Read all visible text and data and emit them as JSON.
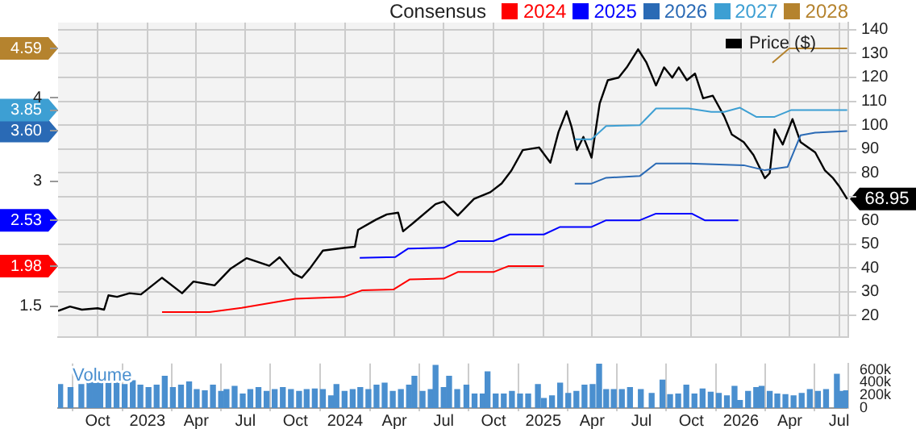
{
  "chart_data": [
    {
      "type": "line",
      "legend_title": "Consensus",
      "legend": "top",
      "grid": true,
      "tick_labels": "y",
      "xlim": [
        "2022-07-20",
        "2026-07-18"
      ],
      "xticks": [
        {
          "value": "2022-10-01",
          "label": null
        },
        {
          "value": "2023-01-01",
          "label": null
        },
        {
          "value": "2023-04-01",
          "label": null
        },
        {
          "value": "2023-07-01",
          "label": null
        },
        {
          "value": "2023-10-01",
          "label": null
        },
        {
          "value": "2024-01-01",
          "label": null
        },
        {
          "value": "2024-04-01",
          "label": null
        },
        {
          "value": "2024-07-01",
          "label": null
        },
        {
          "value": "2024-10-01",
          "label": null
        },
        {
          "value": "2025-01-01",
          "label": null
        },
        {
          "value": "2025-04-01",
          "label": null
        },
        {
          "value": "2025-07-01",
          "label": null
        },
        {
          "value": "2025-10-01",
          "label": null
        },
        {
          "value": "2026-01-01",
          "label": null
        },
        {
          "value": "2026-04-01",
          "label": null
        },
        {
          "value": "2026-07-01",
          "label": null
        }
      ],
      "ylim": [
        1.13,
        4.9
      ],
      "yticks": [
        1.5,
        {
          "value": 1.98,
          "label": "1.98"
        },
        {
          "value": 2.53,
          "label": "2.53"
        },
        3,
        {
          "value": 3.6,
          "label": "3.60"
        },
        {
          "value": 3.85,
          "label": "3.85"
        },
        4,
        {
          "value": 4.59,
          "label": "4.59"
        }
      ],
      "y2lim": [
        11,
        143
      ],
      "y2ticks": [
        20,
        30,
        40,
        50,
        60,
        {
          "value": 70,
          "label": null
        },
        80,
        90,
        100,
        110,
        120,
        130,
        140
      ],
      "series": [
        {
          "name": "2024",
          "color": "#ff0000",
          "axis": "y",
          "x": [
            "2023-01-28",
            "2023-04-26",
            "2023-06-24",
            "2023-10-01",
            "2023-12-29",
            "2024-02-01",
            "2024-03-30",
            "2024-04-29",
            "2024-07-01",
            "2024-07-27",
            "2024-10-01",
            "2024-10-28",
            "2025-01-02"
          ],
          "values": [
            1.43,
            1.43,
            1.48,
            1.59,
            1.61,
            1.69,
            1.7,
            1.82,
            1.83,
            1.91,
            1.91,
            1.98,
            1.98
          ]
        },
        {
          "name": "2025",
          "color": "#0000ff",
          "axis": "y",
          "x": [
            "2024-01-28",
            "2024-04-03",
            "2024-04-26",
            "2024-07-01",
            "2024-07-27",
            "2024-10-01",
            "2024-10-31",
            "2025-01-02",
            "2025-02-01",
            "2025-03-31",
            "2025-04-27",
            "2025-06-28",
            "2025-07-28",
            "2025-10-02",
            "2025-10-26",
            "2025-12-27"
          ],
          "values": [
            2.08,
            2.09,
            2.19,
            2.2,
            2.28,
            2.28,
            2.36,
            2.36,
            2.45,
            2.45,
            2.53,
            2.53,
            2.61,
            2.61,
            2.53,
            2.53
          ]
        },
        {
          "name": "2026",
          "color": "#2a6ab5",
          "axis": "y",
          "x": [
            "2025-02-28",
            "2025-03-31",
            "2025-04-27",
            "2025-06-28",
            "2025-07-28",
            "2025-09-26",
            "2026-01-06",
            "2026-02-14",
            "2026-03-28",
            "2026-04-21",
            "2026-05-18",
            "2026-07-16"
          ],
          "values": [
            2.97,
            2.97,
            3.04,
            3.06,
            3.21,
            3.21,
            3.19,
            3.13,
            3.17,
            3.55,
            3.58,
            3.6
          ]
        },
        {
          "name": "2027",
          "color": "#3d9fd3",
          "axis": "y",
          "x": [
            "2025-02-28",
            "2025-03-31",
            "2025-04-27",
            "2025-06-28",
            "2025-07-28",
            "2025-09-26",
            "2025-11-07",
            "2025-12-01",
            "2025-12-30",
            "2026-01-29",
            "2026-03-04",
            "2026-04-03",
            "2026-07-16"
          ],
          "values": [
            3.5,
            3.5,
            3.66,
            3.67,
            3.87,
            3.87,
            3.83,
            3.83,
            3.88,
            3.77,
            3.77,
            3.85,
            3.85
          ]
        },
        {
          "name": "2028",
          "color": "#b5832e",
          "axis": "y",
          "x": [
            "2026-02-28",
            "2026-03-31",
            "2026-07-16"
          ],
          "values": [
            4.42,
            4.59,
            4.59
          ]
        },
        {
          "name": "Price ($)",
          "color": "#000000",
          "axis": "y2",
          "x": [
            "2022-07-20",
            "2022-08-11",
            "2022-09-02",
            "2022-10-01",
            "2022-10-13",
            "2022-10-21",
            "2022-11-06",
            "2022-11-29",
            "2022-12-20",
            "2023-01-28",
            "2023-03-06",
            "2023-03-27",
            "2023-05-05",
            "2023-06-04",
            "2023-07-03",
            "2023-08-14",
            "2023-09-02",
            "2023-09-28",
            "2023-10-13",
            "2023-10-28",
            "2023-11-21",
            "2023-12-29",
            "2024-01-19",
            "2024-01-25",
            "2024-02-27",
            "2024-03-18",
            "2024-04-08",
            "2024-04-17",
            "2024-05-08",
            "2024-06-16",
            "2024-07-01",
            "2024-07-27",
            "2024-08-26",
            "2024-09-25",
            "2024-10-16",
            "2024-11-03",
            "2024-11-24",
            "2024-12-24",
            "2025-01-14",
            "2025-01-29",
            "2025-02-13",
            "2025-02-22",
            "2025-03-04",
            "2025-03-16",
            "2025-03-31",
            "2025-04-15",
            "2025-04-30",
            "2025-05-20",
            "2025-06-04",
            "2025-06-25",
            "2025-07-10",
            "2025-07-28",
            "2025-08-12",
            "2025-08-27",
            "2025-09-08",
            "2025-09-23",
            "2025-10-08",
            "2025-10-23",
            "2025-11-10",
            "2025-12-01",
            "2025-12-15",
            "2026-01-06",
            "2026-01-24",
            "2026-02-14",
            "2026-02-23",
            "2026-03-04",
            "2026-03-19",
            "2026-04-06",
            "2026-04-21",
            "2026-05-18",
            "2026-06-05",
            "2026-06-20",
            "2026-07-01",
            "2026-07-16"
          ],
          "values": [
            22.0,
            23.8,
            22.5,
            23.1,
            22.5,
            28.5,
            27.9,
            29.4,
            28.9,
            35.9,
            29.4,
            34.3,
            32.7,
            39.8,
            44.1,
            40.9,
            44.5,
            37.6,
            35.9,
            39.8,
            47.3,
            48.4,
            48.9,
            56.0,
            60.3,
            62.5,
            63.2,
            55.4,
            59.3,
            66.8,
            67.9,
            62.0,
            69.0,
            71.8,
            75.5,
            80.9,
            89.5,
            90.6,
            84.2,
            97.1,
            105.8,
            99.3,
            89.5,
            95.0,
            86.3,
            109.0,
            118.8,
            119.9,
            124.2,
            131.8,
            126.4,
            116.6,
            124.2,
            119.9,
            124.2,
            118.8,
            121.6,
            111.2,
            112.3,
            103.6,
            96.0,
            92.8,
            87.4,
            77.7,
            79.8,
            98.2,
            91.8,
            102.5,
            92.8,
            88.5,
            80.9,
            77.7,
            74.4,
            68.95
          ],
          "value_labels": [
            null,
            null,
            null,
            null,
            null,
            null,
            null,
            null,
            null,
            null,
            null,
            null,
            null,
            null,
            null,
            null,
            null,
            null,
            null,
            null,
            null,
            null,
            null,
            null,
            null,
            null,
            null,
            null,
            null,
            null,
            null,
            null,
            null,
            null,
            null,
            null,
            null,
            null,
            null,
            null,
            null,
            null,
            null,
            null,
            null,
            null,
            null,
            null,
            null,
            null,
            null,
            null,
            null,
            null,
            null,
            null,
            null,
            null,
            null,
            null,
            null,
            null,
            null,
            null,
            null,
            null,
            null,
            null,
            null,
            null,
            null,
            null,
            null,
            "68.95"
          ]
        }
      ]
    },
    {
      "type": "bar",
      "annotations": [
        "Volume"
      ],
      "grid": "x",
      "color": "#4a8fcf",
      "xlim": [
        "2022-07-20",
        "2026-07-18"
      ],
      "xticks": [
        {
          "value": "2022-10-01",
          "label": "Oct"
        },
        {
          "value": "2023-01-01",
          "label": "2023"
        },
        {
          "value": "2023-04-01",
          "label": "Apr"
        },
        {
          "value": "2023-07-01",
          "label": "Jul"
        },
        {
          "value": "2023-10-01",
          "label": "Oct"
        },
        {
          "value": "2024-01-01",
          "label": "2024"
        },
        {
          "value": "2024-04-01",
          "label": "Apr"
        },
        {
          "value": "2024-07-01",
          "label": "Jul"
        },
        {
          "value": "2024-10-01",
          "label": "Oct"
        },
        {
          "value": "2025-01-01",
          "label": "2025"
        },
        {
          "value": "2025-04-01",
          "label": "Apr"
        },
        {
          "value": "2025-07-01",
          "label": "Jul"
        },
        {
          "value": "2025-10-01",
          "label": "Oct"
        },
        {
          "value": "2026-01-01",
          "label": "2026"
        },
        {
          "value": "2026-04-01",
          "label": "Apr"
        },
        {
          "value": "2026-07-01",
          "label": "Jul"
        }
      ],
      "ylim": [
        0,
        700000
      ],
      "yticks": [
        0,
        {
          "value": 200000,
          "label": "200k"
        },
        {
          "value": 400000,
          "label": "400k"
        },
        {
          "value": 600000,
          "label": "600k"
        }
      ],
      "x": [
        "2022-07-24",
        "2022-08-12",
        "2022-09-01",
        "2022-09-16",
        "2022-09-26",
        "2022-10-06",
        "2022-10-21",
        "2022-11-05",
        "2022-11-20",
        "2022-12-05",
        "2022-12-19",
        "2023-01-03",
        "2023-01-18",
        "2023-02-02",
        "2023-02-17",
        "2023-03-04",
        "2023-03-19",
        "2023-04-02",
        "2023-04-17",
        "2023-05-02",
        "2023-05-17",
        "2023-05-27",
        "2023-06-11",
        "2023-06-26",
        "2023-07-10",
        "2023-07-25",
        "2023-08-09",
        "2023-08-24",
        "2023-09-08",
        "2023-09-23",
        "2023-10-08",
        "2023-10-22",
        "2023-11-06",
        "2023-11-21",
        "2023-12-06",
        "2023-12-16",
        "2023-12-31",
        "2024-01-15",
        "2024-01-29",
        "2024-02-13",
        "2024-02-28",
        "2024-03-14",
        "2024-03-29",
        "2024-04-13",
        "2024-04-28",
        "2024-05-08",
        "2024-05-23",
        "2024-06-07",
        "2024-06-16",
        "2024-07-01",
        "2024-07-11",
        "2024-07-26",
        "2024-08-12",
        "2024-08-27",
        "2024-09-11",
        "2024-09-20",
        "2024-10-05",
        "2024-10-20",
        "2024-11-04",
        "2024-11-19",
        "2024-12-04",
        "2024-12-22",
        "2025-01-02",
        "2025-01-17",
        "2025-02-01",
        "2025-02-16",
        "2025-03-03",
        "2025-03-18",
        "2025-04-02",
        "2025-04-14",
        "2025-04-27",
        "2025-05-11",
        "2025-05-26",
        "2025-06-10",
        "2025-06-30",
        "2025-07-20",
        "2025-08-09",
        "2025-08-23",
        "2025-09-07",
        "2025-09-22",
        "2025-10-07",
        "2025-10-22",
        "2025-11-06",
        "2025-11-21",
        "2025-12-06",
        "2025-12-20",
        "2025-12-30",
        "2026-01-14",
        "2026-01-29",
        "2026-02-08",
        "2026-02-23",
        "2026-03-09",
        "2026-03-24",
        "2026-04-08",
        "2026-04-23",
        "2026-05-08",
        "2026-05-23",
        "2026-06-07",
        "2026-06-27",
        "2026-07-06",
        "2026-07-14"
      ],
      "values": [
        370000,
        320000,
        370000,
        500000,
        500000,
        460000,
        430000,
        460000,
        370000,
        430000,
        360000,
        320000,
        360000,
        500000,
        320000,
        360000,
        410000,
        290000,
        270000,
        360000,
        260000,
        290000,
        340000,
        220000,
        290000,
        320000,
        260000,
        290000,
        320000,
        290000,
        260000,
        290000,
        300000,
        290000,
        190000,
        370000,
        260000,
        290000,
        320000,
        290000,
        360000,
        390000,
        260000,
        290000,
        360000,
        500000,
        260000,
        290000,
        670000,
        320000,
        500000,
        290000,
        360000,
        220000,
        220000,
        570000,
        220000,
        220000,
        260000,
        220000,
        220000,
        370000,
        150000,
        190000,
        390000,
        230000,
        260000,
        360000,
        370000,
        690000,
        290000,
        290000,
        290000,
        320000,
        290000,
        230000,
        440000,
        210000,
        220000,
        360000,
        220000,
        300000,
        250000,
        230000,
        190000,
        340000,
        120000,
        260000,
        320000,
        340000,
        260000,
        220000,
        210000,
        190000,
        230000,
        290000,
        260000,
        290000,
        530000,
        260000,
        270000
      ]
    }
  ]
}
